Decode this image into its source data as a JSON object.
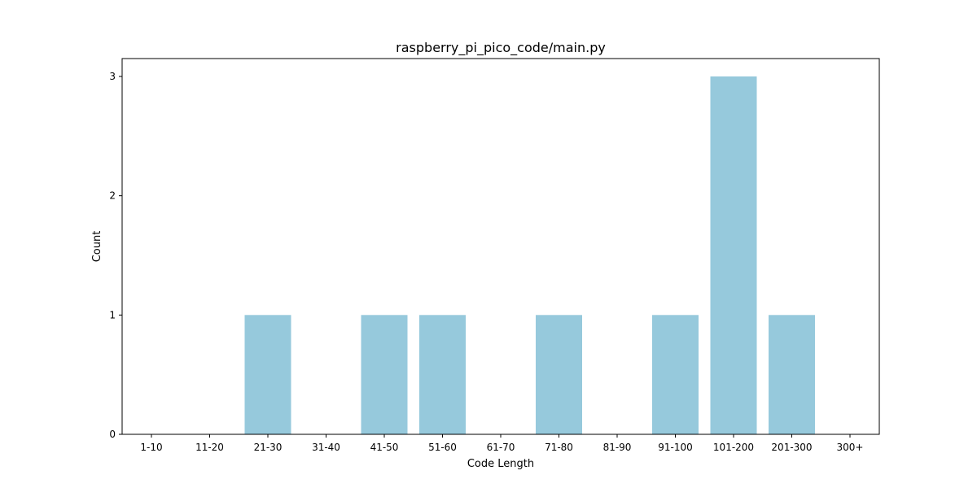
{
  "chart_data": {
    "type": "bar",
    "title": "raspberry_pi_pico_code/main.py",
    "xlabel": "Code Length",
    "ylabel": "Count",
    "categories": [
      "1-10",
      "11-20",
      "21-30",
      "31-40",
      "41-50",
      "51-60",
      "61-70",
      "71-80",
      "81-90",
      "91-100",
      "101-200",
      "201-300",
      "300+"
    ],
    "values": [
      0,
      0,
      1,
      0,
      1,
      1,
      0,
      1,
      0,
      1,
      3,
      1,
      0
    ],
    "ylim": [
      0,
      3.15
    ],
    "yticks": [
      0,
      1,
      2,
      3
    ],
    "grid": false,
    "colors": {
      "bar": "#96c9dc",
      "axis": "#000000"
    }
  }
}
